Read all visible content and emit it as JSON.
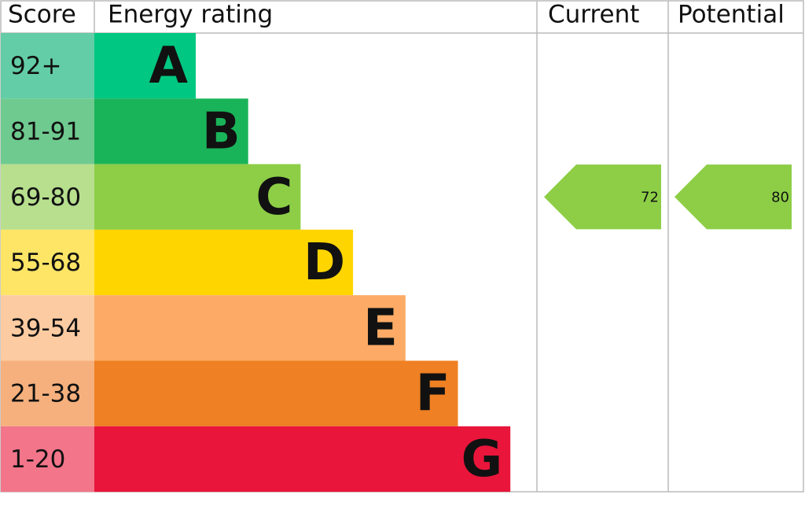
{
  "chart_data": {
    "type": "epc",
    "headers": [
      "Score",
      "Energy rating",
      "Current",
      "Potential"
    ],
    "bands": [
      {
        "score": "92+",
        "letter": "A",
        "color": "#00c781",
        "score_color": "#63cda7"
      },
      {
        "score": "81-91",
        "letter": "B",
        "color": "#19b459",
        "score_color": "#6fca8f"
      },
      {
        "score": "69-80",
        "letter": "C",
        "color": "#8dce46",
        "score_color": "#b7df8e"
      },
      {
        "score": "55-68",
        "letter": "D",
        "color": "#ffd500",
        "score_color": "#ffe566"
      },
      {
        "score": "39-54",
        "letter": "E",
        "color": "#fcaa65",
        "score_color": "#fdcba2"
      },
      {
        "score": "21-38",
        "letter": "F",
        "color": "#ef8023",
        "score_color": "#f5b07d"
      },
      {
        "score": "1-20",
        "letter": "G",
        "color": "#e9153b",
        "score_color": "#f2758a"
      }
    ],
    "current": 72,
    "potential": 80
  }
}
